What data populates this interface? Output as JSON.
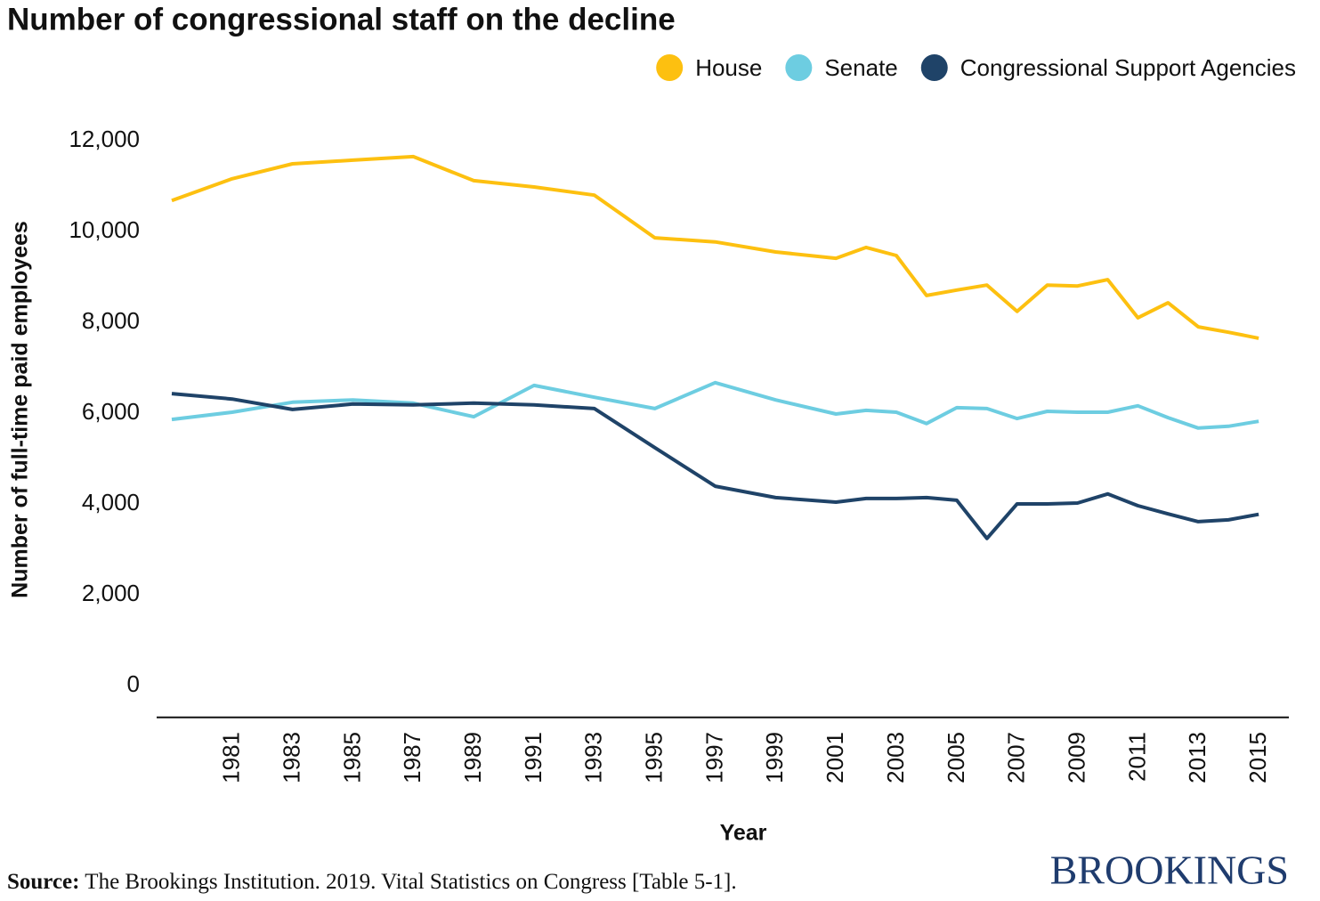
{
  "chart_data": {
    "type": "line",
    "title": "Number of congressional staff on the decline",
    "x_label": "Year",
    "y_label": "Number of full-time paid employees",
    "x": [
      1979,
      1981,
      1983,
      1985,
      1987,
      1989,
      1991,
      1993,
      1995,
      1997,
      1999,
      2001,
      2002,
      2003,
      2004,
      2005,
      2006,
      2007,
      2008,
      2009,
      2010,
      2011,
      2012,
      2013,
      2014,
      2015
    ],
    "series": [
      {
        "name": "House",
        "color": "#fdc010",
        "values": [
          10680,
          11160,
          11490,
          11570,
          11650,
          11120,
          10980,
          10800,
          9860,
          9770,
          9550,
          9410,
          9650,
          9470,
          8590,
          8710,
          8820,
          8240,
          8820,
          8800,
          8940,
          8100,
          8430,
          7900,
          7780,
          7650
        ]
      },
      {
        "name": "Senate",
        "color": "#6dcde1",
        "values": [
          5860,
          6020,
          6240,
          6290,
          6220,
          5920,
          6610,
          6350,
          6100,
          6670,
          6290,
          5980,
          6060,
          6020,
          5770,
          6120,
          6100,
          5880,
          6040,
          6020,
          6020,
          6160,
          5900,
          5670,
          5710,
          5820
        ]
      },
      {
        "name": "Congressional Support Agencies",
        "color": "#1f4368",
        "values": [
          6430,
          6310,
          6080,
          6200,
          6180,
          6220,
          6180,
          6100,
          5240,
          4390,
          4140,
          4040,
          4120,
          4120,
          4140,
          4080,
          3240,
          4000,
          4000,
          4020,
          4220,
          3960,
          3780,
          3610,
          3650,
          3770
        ]
      }
    ],
    "xlim": [
      1978.5,
      2016
    ],
    "xticks": [
      1981,
      1983,
      1985,
      1987,
      1989,
      1991,
      1993,
      1995,
      1997,
      1999,
      2001,
      2003,
      2005,
      2007,
      2009,
      2011,
      2013,
      2015
    ],
    "ylim": [
      -700,
      12500
    ],
    "yticks": [
      0,
      {
        "value": 2000,
        "label": "2,000"
      },
      {
        "value": 4000,
        "label": "4,000"
      },
      {
        "value": 6000,
        "label": "6,000"
      },
      {
        "value": 8000,
        "label": "8,000"
      },
      {
        "value": 10000,
        "label": "10,000"
      },
      {
        "value": 12000,
        "label": "12,000"
      }
    ],
    "grid": false,
    "legend": "top-right",
    "source_label": "Source:",
    "source_text": "The Brookings Institution. 2019. Vital Statistics on Congress [Table 5-1].",
    "logo": "BROOKINGS"
  }
}
